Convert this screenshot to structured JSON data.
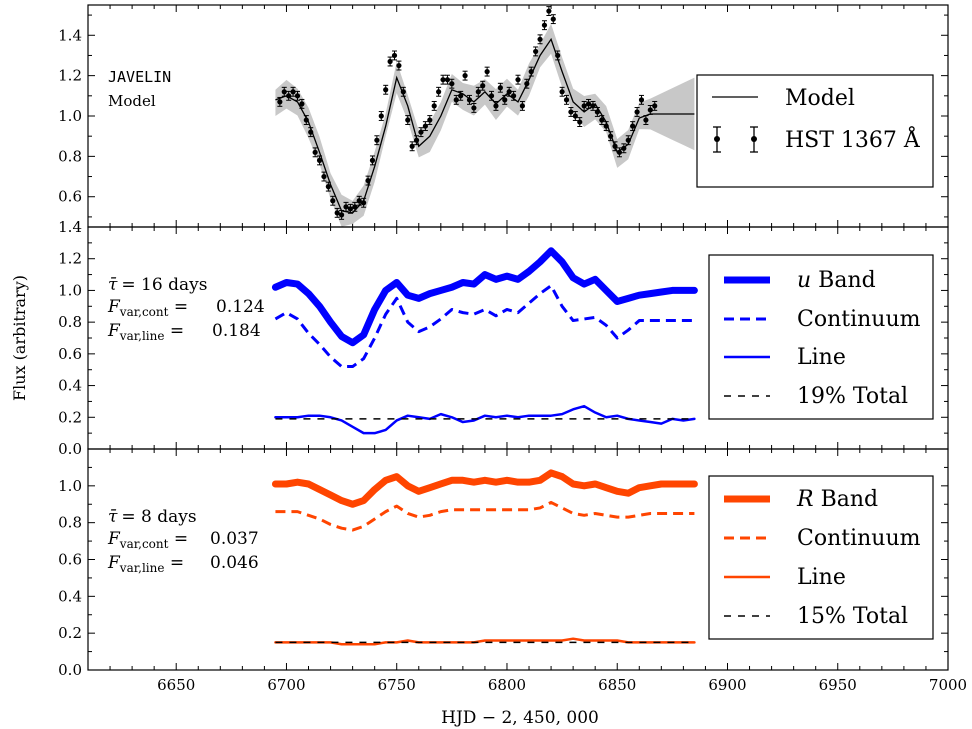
{
  "chart_data": [
    {
      "type": "line",
      "panel": "top",
      "ylim": [
        0.45,
        1.55
      ],
      "yticks": [
        "0.6",
        "0.8",
        "1.0",
        "1.2",
        "1.4"
      ],
      "annotation": [
        "JAVELIN",
        "Model"
      ],
      "legend": {
        "placement": "right",
        "entries": [
          "Model",
          "HST 1367 Å"
        ]
      },
      "series": [
        {
          "name": "Model",
          "style": "solid",
          "color": "#000000",
          "x": [
            6695,
            6700,
            6705,
            6710,
            6715,
            6720,
            6725,
            6730,
            6735,
            6740,
            6745,
            6750,
            6755,
            6760,
            6765,
            6770,
            6775,
            6780,
            6785,
            6790,
            6795,
            6800,
            6805,
            6810,
            6815,
            6820,
            6825,
            6830,
            6835,
            6840,
            6845,
            6850,
            6855,
            6860,
            6865,
            6870,
            6875,
            6880,
            6885
          ],
          "y": [
            1.08,
            1.1,
            1.07,
            0.97,
            0.82,
            0.66,
            0.53,
            0.52,
            0.58,
            0.75,
            0.95,
            1.19,
            1.05,
            0.85,
            0.9,
            1.0,
            1.13,
            1.11,
            1.07,
            1.12,
            1.06,
            1.11,
            1.07,
            1.18,
            1.3,
            1.38,
            1.22,
            1.07,
            1.02,
            1.06,
            0.97,
            0.82,
            0.86,
            0.99,
            1.01,
            1.01,
            1.01,
            1.01,
            1.01
          ]
        },
        {
          "name": "HST 1367 Å",
          "x": [
            6697,
            6699,
            6701,
            6703,
            6705,
            6707,
            6709,
            6711,
            6713,
            6715,
            6717,
            6719,
            6721,
            6723,
            6725,
            6727,
            6729,
            6731,
            6733,
            6735,
            6737,
            6739,
            6741,
            6743,
            6745,
            6747,
            6749,
            6751,
            6753,
            6755,
            6757,
            6759,
            6761,
            6763,
            6765,
            6767,
            6769,
            6771,
            6773,
            6775,
            6777,
            6779,
            6781,
            6783,
            6785,
            6787,
            6789,
            6791,
            6793,
            6795,
            6797,
            6799,
            6801,
            6803,
            6805,
            6807,
            6809,
            6811,
            6813,
            6815,
            6817,
            6819,
            6821,
            6823,
            6825,
            6827,
            6829,
            6831,
            6833,
            6835,
            6837,
            6839,
            6841,
            6843,
            6845,
            6847,
            6849,
            6851,
            6853,
            6855,
            6857,
            6859,
            6861,
            6863,
            6865,
            6867
          ],
          "y": [
            1.07,
            1.12,
            1.1,
            1.12,
            1.1,
            1.06,
            0.98,
            0.92,
            0.82,
            0.78,
            0.7,
            0.65,
            0.58,
            0.52,
            0.51,
            0.55,
            0.54,
            0.55,
            0.58,
            0.57,
            0.68,
            0.78,
            0.88,
            1.0,
            1.13,
            1.27,
            1.3,
            1.25,
            1.12,
            0.98,
            0.85,
            0.88,
            0.92,
            0.95,
            0.98,
            1.05,
            1.12,
            1.18,
            1.18,
            1.16,
            1.08,
            1.1,
            1.2,
            1.08,
            1.04,
            1.12,
            1.15,
            1.22,
            1.1,
            1.05,
            1.14,
            1.08,
            1.12,
            1.1,
            1.18,
            1.05,
            1.16,
            1.22,
            1.32,
            1.38,
            1.45,
            1.52,
            1.48,
            1.3,
            1.12,
            1.08,
            1.02,
            1.0,
            0.97,
            1.05,
            1.06,
            1.05,
            1.02,
            0.98,
            0.95,
            0.9,
            0.85,
            0.82,
            0.84,
            0.88,
            0.95,
            1.02,
            1.08,
            0.98,
            1.03,
            1.05
          ]
        }
      ]
    },
    {
      "type": "line",
      "panel": "middle",
      "ylim": [
        0.0,
        1.4
      ],
      "yticks": [
        "0.0",
        "0.2",
        "0.4",
        "0.6",
        "0.8",
        "1.0",
        "1.2",
        "1.4"
      ],
      "annotation": {
        "tau": "= 16 days",
        "fvar_cont": "0.124",
        "fvar_line": "0.184"
      },
      "legend": {
        "placement": "right",
        "entries": [
          "u Band",
          "Continuum",
          "Line",
          "19% Total"
        ]
      },
      "x": [
        6695,
        6700,
        6705,
        6710,
        6715,
        6720,
        6725,
        6730,
        6735,
        6740,
        6745,
        6750,
        6755,
        6760,
        6765,
        6770,
        6775,
        6780,
        6785,
        6790,
        6795,
        6800,
        6805,
        6810,
        6815,
        6820,
        6825,
        6830,
        6835,
        6840,
        6845,
        6850,
        6855,
        6860,
        6865,
        6870,
        6875,
        6880,
        6885
      ],
      "series": [
        {
          "name": "u Band",
          "style": "thick",
          "color": "#0000ff",
          "y": [
            1.02,
            1.05,
            1.04,
            0.98,
            0.9,
            0.8,
            0.71,
            0.67,
            0.72,
            0.88,
            1.0,
            1.05,
            0.97,
            0.95,
            0.98,
            1.0,
            1.02,
            1.05,
            1.04,
            1.1,
            1.07,
            1.09,
            1.07,
            1.12,
            1.18,
            1.25,
            1.18,
            1.08,
            1.04,
            1.07,
            1.0,
            0.93,
            0.95,
            0.97,
            0.98,
            0.99,
            1.0,
            1.0,
            1.0
          ]
        },
        {
          "name": "Continuum",
          "style": "dashed",
          "color": "#0000ff",
          "y": [
            0.82,
            0.86,
            0.82,
            0.73,
            0.66,
            0.58,
            0.52,
            0.52,
            0.57,
            0.7,
            0.85,
            0.95,
            0.8,
            0.74,
            0.77,
            0.82,
            0.88,
            0.86,
            0.85,
            0.88,
            0.84,
            0.88,
            0.86,
            0.92,
            0.98,
            1.03,
            0.9,
            0.81,
            0.82,
            0.83,
            0.78,
            0.7,
            0.75,
            0.81,
            0.81,
            0.81,
            0.81,
            0.81,
            0.81
          ]
        },
        {
          "name": "Line",
          "style": "solid",
          "color": "#0000ff",
          "y": [
            0.2,
            0.2,
            0.2,
            0.21,
            0.21,
            0.2,
            0.18,
            0.14,
            0.1,
            0.1,
            0.12,
            0.18,
            0.21,
            0.2,
            0.19,
            0.22,
            0.2,
            0.17,
            0.18,
            0.21,
            0.2,
            0.21,
            0.2,
            0.21,
            0.21,
            0.21,
            0.22,
            0.25,
            0.27,
            0.23,
            0.2,
            0.21,
            0.19,
            0.18,
            0.17,
            0.16,
            0.19,
            0.18,
            0.19
          ]
        },
        {
          "name": "19% Total",
          "style": "dashed-thin",
          "color": "#000000",
          "y": [
            0.19,
            0.19,
            0.19,
            0.19,
            0.19,
            0.19,
            0.19,
            0.19,
            0.19,
            0.19,
            0.19,
            0.19,
            0.19,
            0.19,
            0.19,
            0.19,
            0.19,
            0.19,
            0.19,
            0.19,
            0.19,
            0.19,
            0.19,
            0.19,
            0.19,
            0.19,
            0.19,
            0.19,
            0.19,
            0.19,
            0.19,
            0.19,
            0.19,
            0.19,
            0.19,
            0.19,
            0.19,
            0.19,
            0.19
          ]
        }
      ]
    },
    {
      "type": "line",
      "panel": "bottom",
      "xlim": [
        6610,
        7000
      ],
      "ylim": [
        0.0,
        1.2
      ],
      "xticks": [
        "6650",
        "6700",
        "6750",
        "6800",
        "6850",
        "6900",
        "6950",
        "7000"
      ],
      "yticks": [
        "0.0",
        "0.2",
        "0.4",
        "0.6",
        "0.8",
        "1.0"
      ],
      "xlabel": "HJD − 2, 450, 000",
      "ylabel": "Flux (arbitrary)",
      "annotation": {
        "tau": "= 8 days",
        "fvar_cont": "0.037",
        "fvar_line": "0.046"
      },
      "legend": {
        "placement": "right",
        "entries": [
          "R Band",
          "Continuum",
          "Line",
          "15% Total"
        ]
      },
      "x": [
        6695,
        6700,
        6705,
        6710,
        6715,
        6720,
        6725,
        6730,
        6735,
        6740,
        6745,
        6750,
        6755,
        6760,
        6765,
        6770,
        6775,
        6780,
        6785,
        6790,
        6795,
        6800,
        6805,
        6810,
        6815,
        6820,
        6825,
        6830,
        6835,
        6840,
        6845,
        6850,
        6855,
        6860,
        6865,
        6870,
        6875,
        6880,
        6885
      ],
      "series": [
        {
          "name": "R Band",
          "style": "thick",
          "color": "#ff4500",
          "y": [
            1.01,
            1.01,
            1.02,
            1.01,
            0.98,
            0.95,
            0.92,
            0.9,
            0.92,
            0.98,
            1.03,
            1.05,
            1.0,
            0.97,
            0.99,
            1.01,
            1.03,
            1.03,
            1.02,
            1.03,
            1.02,
            1.03,
            1.02,
            1.02,
            1.03,
            1.07,
            1.05,
            1.01,
            1.0,
            1.01,
            0.99,
            0.97,
            0.96,
            0.99,
            1.0,
            1.01,
            1.01,
            1.01,
            1.01
          ]
        },
        {
          "name": "Continuum",
          "style": "dashed",
          "color": "#ff4500",
          "y": [
            0.86,
            0.86,
            0.86,
            0.84,
            0.82,
            0.79,
            0.77,
            0.76,
            0.78,
            0.82,
            0.86,
            0.89,
            0.85,
            0.83,
            0.84,
            0.86,
            0.87,
            0.87,
            0.87,
            0.87,
            0.87,
            0.87,
            0.87,
            0.87,
            0.88,
            0.91,
            0.88,
            0.85,
            0.84,
            0.85,
            0.84,
            0.83,
            0.83,
            0.84,
            0.85,
            0.85,
            0.85,
            0.85,
            0.85
          ]
        },
        {
          "name": "Line",
          "style": "solid",
          "color": "#ff4500",
          "y": [
            0.15,
            0.15,
            0.15,
            0.15,
            0.15,
            0.15,
            0.14,
            0.14,
            0.14,
            0.14,
            0.15,
            0.15,
            0.16,
            0.15,
            0.15,
            0.15,
            0.15,
            0.15,
            0.15,
            0.16,
            0.16,
            0.16,
            0.16,
            0.16,
            0.16,
            0.16,
            0.16,
            0.17,
            0.16,
            0.16,
            0.16,
            0.16,
            0.15,
            0.15,
            0.15,
            0.15,
            0.15,
            0.15,
            0.15
          ]
        },
        {
          "name": "15% Total",
          "style": "dashed-thin",
          "color": "#000000",
          "y": [
            0.15,
            0.15,
            0.15,
            0.15,
            0.15,
            0.15,
            0.15,
            0.15,
            0.15,
            0.15,
            0.15,
            0.15,
            0.15,
            0.15,
            0.15,
            0.15,
            0.15,
            0.15,
            0.15,
            0.15,
            0.15,
            0.15,
            0.15,
            0.15,
            0.15,
            0.15,
            0.15,
            0.15,
            0.15,
            0.15,
            0.15,
            0.15,
            0.15,
            0.15,
            0.15,
            0.15,
            0.15,
            0.15,
            0.15
          ]
        }
      ]
    }
  ]
}
